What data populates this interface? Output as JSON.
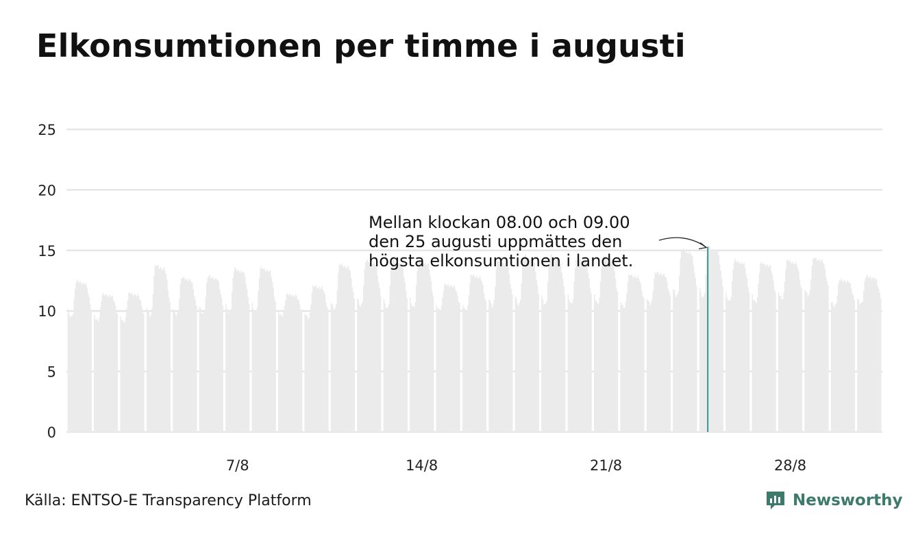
{
  "chart_data": {
    "type": "area",
    "title": "Elkonsumtionen per timme i augusti",
    "xlabel": "",
    "ylabel": "",
    "ylim": [
      0,
      25
    ],
    "yticks": [
      0,
      5,
      10,
      15,
      20,
      25
    ],
    "x_range_days": [
      1,
      32
    ],
    "xticks": [
      {
        "day": 7,
        "label": "7/8"
      },
      {
        "day": 14,
        "label": "14/8"
      },
      {
        "day": 21,
        "label": "21/8"
      },
      {
        "day": 28,
        "label": "28/8"
      }
    ],
    "daily": [
      {
        "day": 1,
        "min": 9.5,
        "max": 12.5
      },
      {
        "day": 2,
        "min": 9.2,
        "max": 11.4
      },
      {
        "day": 3,
        "min": 9.1,
        "max": 11.5
      },
      {
        "day": 4,
        "min": 9.6,
        "max": 13.8
      },
      {
        "day": 5,
        "min": 9.7,
        "max": 12.8
      },
      {
        "day": 6,
        "min": 9.8,
        "max": 12.9
      },
      {
        "day": 7,
        "min": 9.8,
        "max": 13.5
      },
      {
        "day": 8,
        "min": 9.9,
        "max": 13.6
      },
      {
        "day": 9,
        "min": 9.6,
        "max": 11.4
      },
      {
        "day": 10,
        "min": 9.4,
        "max": 12.1
      },
      {
        "day": 11,
        "min": 10.1,
        "max": 13.9
      },
      {
        "day": 12,
        "min": 10.4,
        "max": 14.2
      },
      {
        "day": 13,
        "min": 10.2,
        "max": 14.2
      },
      {
        "day": 14,
        "min": 10.3,
        "max": 14.2
      },
      {
        "day": 15,
        "min": 10.1,
        "max": 12.2
      },
      {
        "day": 16,
        "min": 10.0,
        "max": 13.0
      },
      {
        "day": 17,
        "min": 10.4,
        "max": 14.2
      },
      {
        "day": 18,
        "min": 10.5,
        "max": 14.6
      },
      {
        "day": 19,
        "min": 10.5,
        "max": 14.6
      },
      {
        "day": 20,
        "min": 10.6,
        "max": 14.4
      },
      {
        "day": 21,
        "min": 10.6,
        "max": 14.5
      },
      {
        "day": 22,
        "min": 10.3,
        "max": 13.0
      },
      {
        "day": 23,
        "min": 10.6,
        "max": 13.2
      },
      {
        "day": 24,
        "min": 11.2,
        "max": 15.1
      },
      {
        "day": 25,
        "min": 11.1,
        "max": 15.3
      },
      {
        "day": 26,
        "min": 10.8,
        "max": 14.2
      },
      {
        "day": 27,
        "min": 10.7,
        "max": 14.0
      },
      {
        "day": 28,
        "min": 11.0,
        "max": 14.2
      },
      {
        "day": 29,
        "min": 11.3,
        "max": 14.4
      },
      {
        "day": 30,
        "min": 10.4,
        "max": 12.6
      },
      {
        "day": 31,
        "min": 10.6,
        "max": 12.9
      }
    ],
    "highlight": {
      "day": 25,
      "hour": 8,
      "value": 15.3
    },
    "annotation": [
      "Mellan klockan 08.00 och 09.00",
      "den 25 augusti uppmättes den",
      "högsta elkonsumtionen i landet."
    ],
    "colors": {
      "area": "#ebebeb",
      "grid": "#e6e6e6",
      "highlight": "#2a9d8f",
      "axis": "#dddddd"
    }
  },
  "source": "Källa: ENTSO-E Transparency Platform",
  "brand": {
    "name": "Newsworthy",
    "color": "#3d7a6b",
    "icon": "newsworthy-bar-chart-bubble-icon"
  }
}
